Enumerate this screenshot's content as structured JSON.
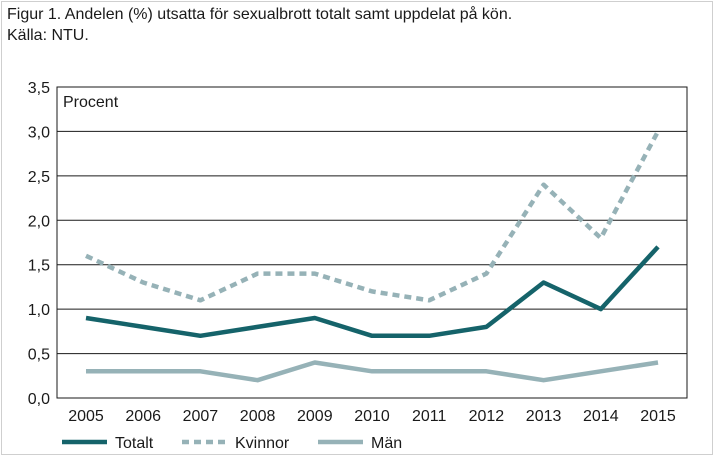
{
  "chart_data": {
    "type": "line",
    "title": "Figur 1. Andelen (%) utsatta för sexualbrott totalt samt uppdelat på kön.",
    "source": "Källa: NTU.",
    "unit_label": "Procent",
    "categories": [
      "2005",
      "2006",
      "2007",
      "2008",
      "2009",
      "2010",
      "2011",
      "2012",
      "2013",
      "2014",
      "2015"
    ],
    "ylim": [
      0,
      3.5
    ],
    "yticks": [
      "0,0",
      "0,5",
      "1,0",
      "1,5",
      "2,0",
      "2,5",
      "3,0",
      "3,5"
    ],
    "grid": true,
    "legend_position": "bottom",
    "series": [
      {
        "name": "Totalt",
        "color": "#15636a",
        "style": "solid",
        "values": [
          0.9,
          0.8,
          0.7,
          0.8,
          0.9,
          0.7,
          0.7,
          0.8,
          1.3,
          1.0,
          1.7
        ]
      },
      {
        "name": "Kvinnor",
        "color": "#96b2b7",
        "style": "dashed",
        "values": [
          1.6,
          1.3,
          1.1,
          1.4,
          1.4,
          1.2,
          1.1,
          1.4,
          2.4,
          1.8,
          3.0
        ]
      },
      {
        "name": "Män",
        "color": "#96b2b7",
        "style": "solid",
        "values": [
          0.3,
          0.3,
          0.3,
          0.2,
          0.4,
          0.3,
          0.3,
          0.3,
          0.2,
          0.3,
          0.4
        ]
      }
    ]
  }
}
